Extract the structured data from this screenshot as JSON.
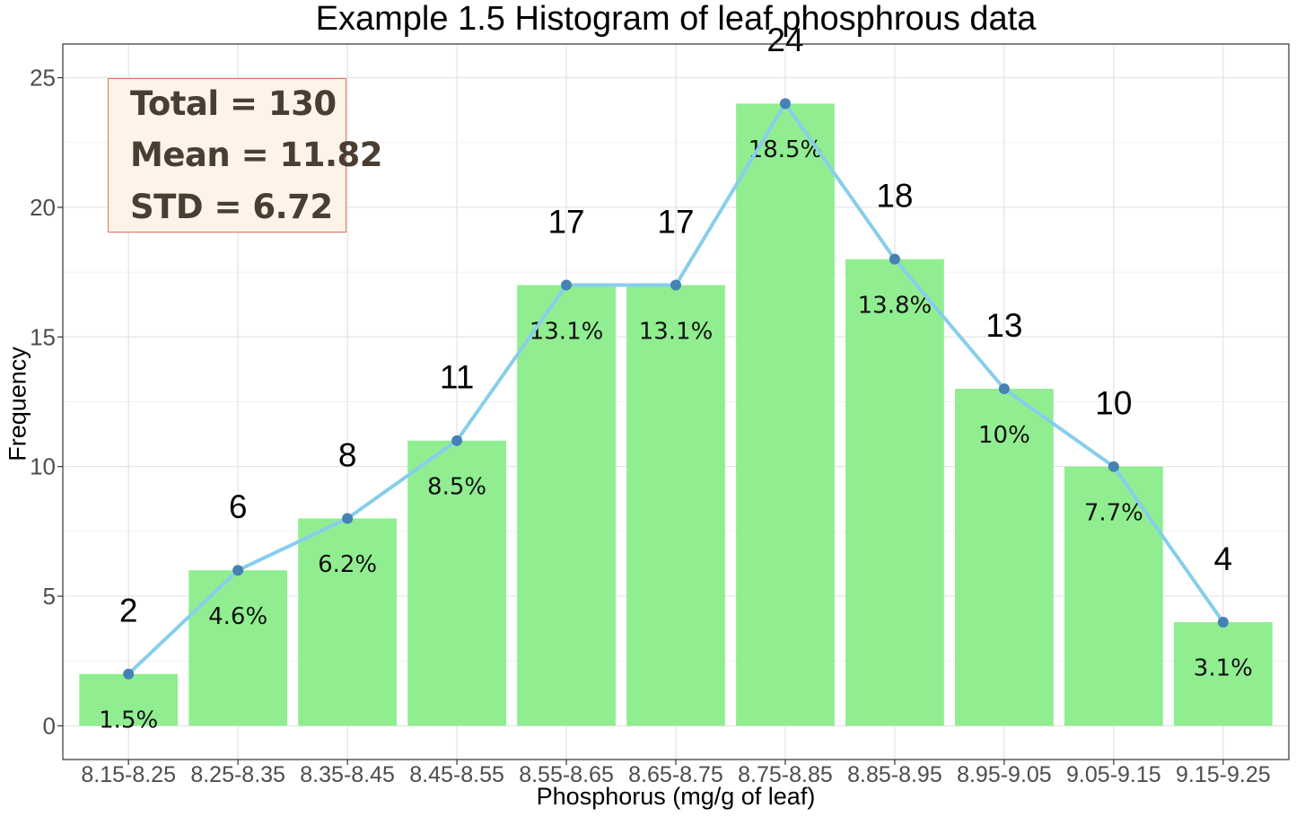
{
  "chart_data": {
    "type": "bar",
    "title": "Example 1.5 Histogram of leaf phosphrous data",
    "xlabel": "Phosphorus (mg/g of leaf)",
    "ylabel": "Frequency",
    "categories": [
      "8.15-8.25",
      "8.25-8.35",
      "8.35-8.45",
      "8.45-8.55",
      "8.55-8.65",
      "8.65-8.75",
      "8.75-8.85",
      "8.85-8.95",
      "8.95-9.05",
      "9.05-9.15",
      "9.15-9.25"
    ],
    "values": [
      2,
      6,
      8,
      11,
      17,
      17,
      24,
      18,
      13,
      10,
      4
    ],
    "percent_labels": [
      "1.5%",
      "4.6%",
      "6.2%",
      "8.5%",
      "13.1%",
      "13.1%",
      "18.5%",
      "13.8%",
      "10%",
      "7.7%",
      "3.1%"
    ],
    "overlay": "frequency polygon through bar tops",
    "ylim": [
      -1.3,
      26.3
    ],
    "yticks": [
      0,
      5,
      10,
      15,
      20,
      25
    ],
    "grid": true,
    "colors": {
      "bar": "#90ee90",
      "line": "#87ceeb",
      "point": "#4682b4",
      "box_fill": "#fdf3e8",
      "box_border": "#e0745a",
      "box_text": "#4a3e33"
    }
  },
  "stats": {
    "total": "Total = 130",
    "mean": "Mean = 11.82",
    "std": "STD = 6.72"
  }
}
